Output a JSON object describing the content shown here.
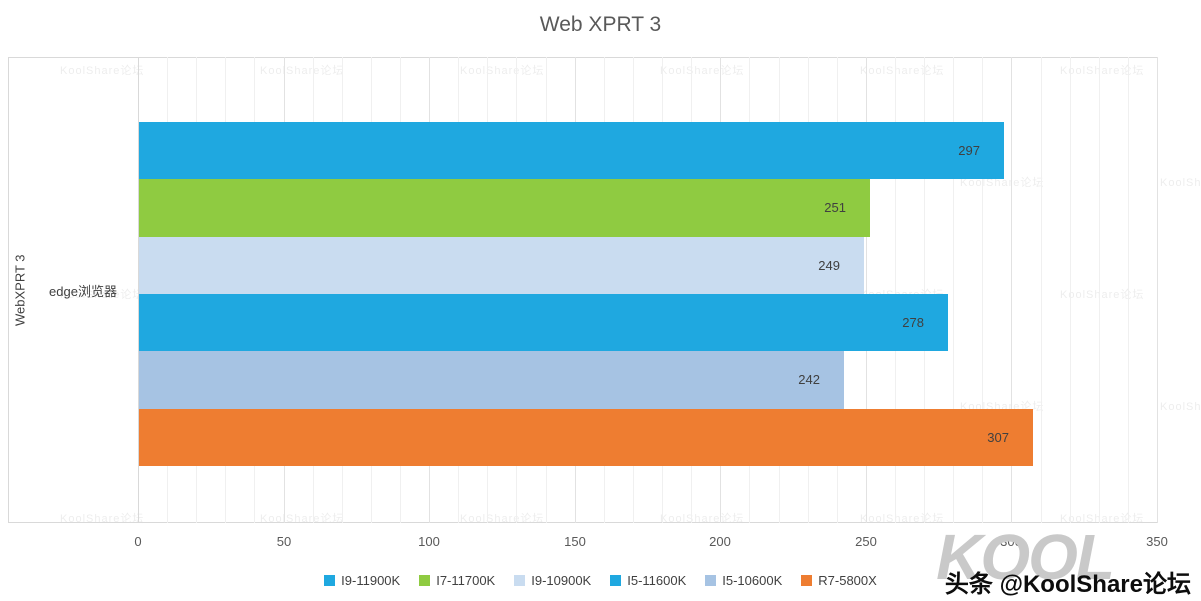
{
  "chart": {
    "title": "Web XPRT 3",
    "y_group_label": "WebXPRT 3",
    "y_category_label": "edge浏览器"
  },
  "chart_data": {
    "type": "bar",
    "orientation": "horizontal",
    "title": "Web XPRT 3",
    "category_axis_label": "WebXPRT 3",
    "categories": [
      "edge浏览器"
    ],
    "series": [
      {
        "name": "I9-11900K",
        "value": 297,
        "color": "#1FA8E0"
      },
      {
        "name": "I7-11700K",
        "value": 251,
        "color": "#8FCB41"
      },
      {
        "name": "I9-10900K",
        "value": 249,
        "color": "#C9DCF0"
      },
      {
        "name": "I5-11600K",
        "value": 278,
        "color": "#1FA8E0"
      },
      {
        "name": "I5-10600K",
        "value": 242,
        "color": "#A6C3E3"
      },
      {
        "name": "R7-5800X",
        "value": 307,
        "color": "#EE7D31"
      }
    ],
    "xlim": [
      0,
      350
    ],
    "x_ticks": [
      0,
      50,
      100,
      150,
      200,
      250,
      300,
      350
    ],
    "minor_grid_step": 10,
    "major_grid_step": 50,
    "grid": true,
    "legend_position": "bottom",
    "value_labels": "inside-end"
  },
  "watermark": {
    "big_text": "KOOL",
    "credit": "头条 @KoolShare论坛",
    "tile": "KoolShare论坛"
  }
}
